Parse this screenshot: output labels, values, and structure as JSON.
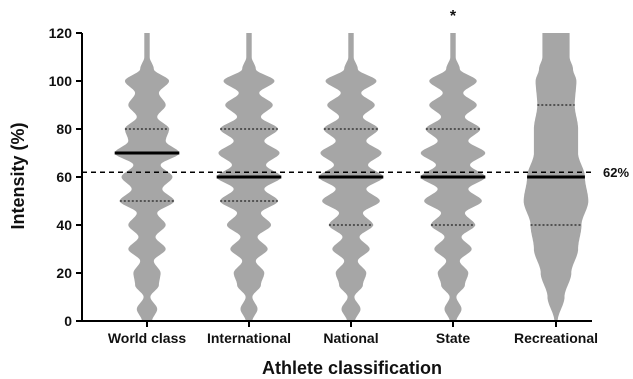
{
  "chart_data": {
    "type": "violin",
    "xlabel": "Athlete classification",
    "ylabel": "Intensity (%)",
    "ylim": [
      0,
      120
    ],
    "yticks": [
      0,
      20,
      40,
      60,
      80,
      100,
      120
    ],
    "categories": [
      "World class",
      "International",
      "National",
      "State",
      "Recreational"
    ],
    "series": [
      {
        "category": "World class",
        "median": 70,
        "q1": 50,
        "q3": 80,
        "min": 0,
        "max": 120,
        "density": [
          [
            0,
            0.15
          ],
          [
            5,
            0.3
          ],
          [
            10,
            0.1
          ],
          [
            15,
            0.35
          ],
          [
            20,
            0.4
          ],
          [
            25,
            0.2
          ],
          [
            30,
            0.55
          ],
          [
            35,
            0.25
          ],
          [
            40,
            0.55
          ],
          [
            45,
            0.3
          ],
          [
            50,
            0.8
          ],
          [
            55,
            0.45
          ],
          [
            60,
            0.75
          ],
          [
            65,
            0.4
          ],
          [
            70,
            0.95
          ],
          [
            75,
            0.55
          ],
          [
            80,
            0.65
          ],
          [
            85,
            0.3
          ],
          [
            90,
            0.55
          ],
          [
            95,
            0.35
          ],
          [
            100,
            0.65
          ],
          [
            105,
            0.2
          ],
          [
            110,
            0.08
          ],
          [
            115,
            0.08
          ],
          [
            120,
            0.08
          ]
        ]
      },
      {
        "category": "International",
        "median": 60,
        "q1": 50,
        "q3": 80,
        "min": 0,
        "max": 120,
        "density": [
          [
            0,
            0.1
          ],
          [
            5,
            0.25
          ],
          [
            10,
            0.1
          ],
          [
            15,
            0.35
          ],
          [
            20,
            0.45
          ],
          [
            25,
            0.2
          ],
          [
            30,
            0.55
          ],
          [
            35,
            0.25
          ],
          [
            40,
            0.65
          ],
          [
            45,
            0.35
          ],
          [
            50,
            0.85
          ],
          [
            55,
            0.45
          ],
          [
            60,
            0.95
          ],
          [
            65,
            0.5
          ],
          [
            70,
            0.9
          ],
          [
            75,
            0.45
          ],
          [
            80,
            0.85
          ],
          [
            85,
            0.35
          ],
          [
            90,
            0.7
          ],
          [
            95,
            0.3
          ],
          [
            100,
            0.75
          ],
          [
            105,
            0.2
          ],
          [
            110,
            0.08
          ],
          [
            115,
            0.08
          ],
          [
            120,
            0.08
          ]
        ]
      },
      {
        "category": "National",
        "median": 60,
        "q1": 40,
        "q3": 80,
        "min": 0,
        "max": 120,
        "density": [
          [
            0,
            0.12
          ],
          [
            5,
            0.28
          ],
          [
            10,
            0.1
          ],
          [
            15,
            0.35
          ],
          [
            20,
            0.45
          ],
          [
            25,
            0.2
          ],
          [
            30,
            0.55
          ],
          [
            35,
            0.25
          ],
          [
            40,
            0.65
          ],
          [
            45,
            0.35
          ],
          [
            50,
            0.85
          ],
          [
            55,
            0.45
          ],
          [
            60,
            0.95
          ],
          [
            65,
            0.5
          ],
          [
            70,
            0.9
          ],
          [
            75,
            0.45
          ],
          [
            80,
            0.8
          ],
          [
            85,
            0.35
          ],
          [
            90,
            0.7
          ],
          [
            95,
            0.3
          ],
          [
            100,
            0.75
          ],
          [
            105,
            0.2
          ],
          [
            110,
            0.08
          ],
          [
            115,
            0.08
          ],
          [
            120,
            0.08
          ]
        ]
      },
      {
        "category": "State",
        "median": 60,
        "q1": 40,
        "q3": 80,
        "min": 0,
        "max": 120,
        "density": [
          [
            0,
            0.1
          ],
          [
            5,
            0.25
          ],
          [
            10,
            0.1
          ],
          [
            15,
            0.35
          ],
          [
            20,
            0.45
          ],
          [
            25,
            0.2
          ],
          [
            30,
            0.55
          ],
          [
            35,
            0.25
          ],
          [
            40,
            0.65
          ],
          [
            45,
            0.35
          ],
          [
            50,
            0.85
          ],
          [
            55,
            0.45
          ],
          [
            60,
            0.95
          ],
          [
            65,
            0.5
          ],
          [
            70,
            0.95
          ],
          [
            75,
            0.45
          ],
          [
            80,
            0.8
          ],
          [
            85,
            0.35
          ],
          [
            90,
            0.7
          ],
          [
            95,
            0.3
          ],
          [
            100,
            0.7
          ],
          [
            105,
            0.2
          ],
          [
            110,
            0.08
          ],
          [
            115,
            0.08
          ],
          [
            120,
            0.08
          ]
        ]
      },
      {
        "category": "Recreational",
        "median": 60,
        "q1": 40,
        "q3": 90,
        "min": 0,
        "max": 120,
        "density": [
          [
            0,
            0.05
          ],
          [
            10,
            0.25
          ],
          [
            20,
            0.45
          ],
          [
            30,
            0.65
          ],
          [
            40,
            0.75
          ],
          [
            50,
            0.95
          ],
          [
            60,
            0.85
          ],
          [
            70,
            0.65
          ],
          [
            80,
            0.65
          ],
          [
            90,
            0.55
          ],
          [
            100,
            0.6
          ],
          [
            105,
            0.5
          ],
          [
            110,
            0.4
          ],
          [
            120,
            0.4
          ]
        ]
      }
    ],
    "reference_line": {
      "value": 62,
      "label": "62%",
      "style": "dashed"
    },
    "annotations": [
      {
        "category": "State",
        "text": "*"
      }
    ],
    "grid": false,
    "colors": {
      "violin": "#a6a6a6",
      "median": "#000000",
      "quartile": "#000000",
      "axis": "#000000"
    }
  }
}
